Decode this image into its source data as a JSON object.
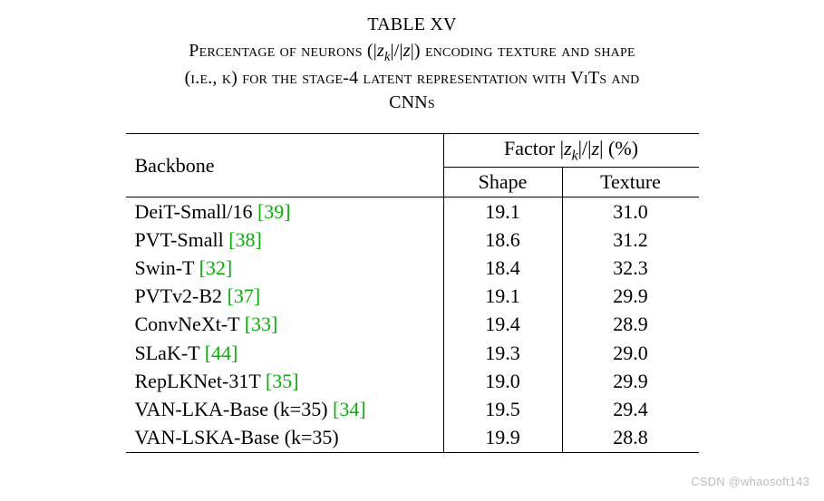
{
  "caption": {
    "table_label": "TABLE XV",
    "line1_pre": "Percentage of neurons (|",
    "line1_zk_z": "z",
    "line1_zk_k": "k",
    "line1_mid1": "|/|",
    "line1_z": "z",
    "line1_post": "|) encoding texture and shape",
    "line2": "(i.e., k) for the stage-4 latent representation with ViTs and",
    "line3": "CNNs"
  },
  "table": {
    "header": {
      "backbone": "Backbone",
      "factor_pre": "Factor |",
      "factor_zk_z": "z",
      "factor_zk_k": "k",
      "factor_mid": "|/|",
      "factor_z": "z",
      "factor_post": "| (%)",
      "shape": "Shape",
      "texture": "Texture"
    },
    "rows": [
      {
        "name": "DeiT-Small/16 ",
        "cite": "[39]",
        "shape": "19.1",
        "texture": "31.0",
        "shape_bold": false,
        "texture_bold": false
      },
      {
        "name": "PVT-Small ",
        "cite": "[38]",
        "shape": "18.6",
        "texture": "31.2",
        "shape_bold": false,
        "texture_bold": false
      },
      {
        "name": "Swin-T ",
        "cite": "[32]",
        "shape": "18.4",
        "texture": "32.3",
        "shape_bold": false,
        "texture_bold": true
      },
      {
        "name": "PVTv2-B2 ",
        "cite": "[37]",
        "shape": "19.1",
        "texture": "29.9",
        "shape_bold": false,
        "texture_bold": false
      },
      {
        "name": "ConvNeXt-T ",
        "cite": "[33]",
        "shape": "19.4",
        "texture": "28.9",
        "shape_bold": false,
        "texture_bold": false
      },
      {
        "name": "SLaK-T ",
        "cite": "[44]",
        "shape": "19.3",
        "texture": "29.0",
        "shape_bold": false,
        "texture_bold": false
      },
      {
        "name": "RepLKNet-31T ",
        "cite": "[35]",
        "shape": "19.0",
        "texture": "29.9",
        "shape_bold": false,
        "texture_bold": false
      },
      {
        "name": "VAN-LKA-Base (k=35) ",
        "cite": "[34]",
        "shape": "19.5",
        "texture": "29.4",
        "shape_bold": false,
        "texture_bold": false
      },
      {
        "name": "VAN-LSKA-Base (k=35)",
        "cite": "",
        "shape": "19.9",
        "texture": "28.8",
        "shape_bold": true,
        "texture_bold": false
      }
    ],
    "colors": {
      "cite": "#00b400",
      "text": "#000000",
      "rule": "#000000",
      "background": "#ffffff"
    }
  },
  "watermark": "CSDN @whaosoft143"
}
